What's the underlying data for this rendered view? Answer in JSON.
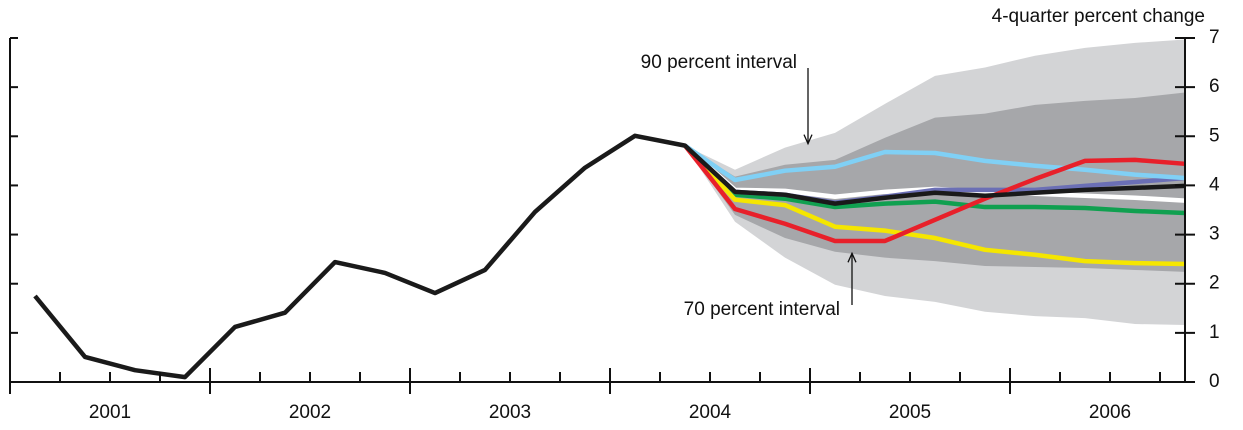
{
  "chart_data": {
    "type": "fan",
    "y_axis_label": "4-quarter percent change",
    "x": [
      2001.125,
      2001.375,
      2001.625,
      2001.875,
      2002.125,
      2002.375,
      2002.625,
      2002.875,
      2003.125,
      2003.375,
      2003.625,
      2003.875,
      2004.125,
      2004.375,
      2004.625,
      2004.875,
      2005.125,
      2005.375,
      2005.625,
      2005.875,
      2006.125,
      2006.375,
      2006.625,
      2006.875
    ],
    "xlim": [
      2001,
      2006.875
    ],
    "xticks": [
      {
        "value": 2001.5,
        "label": "2001"
      },
      {
        "value": 2002.5,
        "label": "2002"
      },
      {
        "value": 2003.5,
        "label": "2003"
      },
      {
        "value": 2004.5,
        "label": "2004"
      },
      {
        "value": 2005.5,
        "label": "2005"
      },
      {
        "value": 2006.5,
        "label": "2006"
      }
    ],
    "ylim": [
      0,
      7
    ],
    "yticks": [
      0,
      1,
      2,
      3,
      4,
      5,
      6,
      7
    ],
    "bands": [
      {
        "color": "#d3d4d6",
        "upper": [
          null,
          null,
          null,
          null,
          null,
          null,
          null,
          null,
          null,
          null,
          null,
          null,
          null,
          4.81,
          4.32,
          4.77,
          5.07,
          5.66,
          6.23,
          6.4,
          6.64,
          6.8,
          6.9,
          6.97
        ],
        "lower": [
          null,
          null,
          null,
          null,
          null,
          null,
          null,
          null,
          null,
          null,
          null,
          null,
          null,
          4.81,
          3.26,
          2.53,
          1.98,
          1.75,
          1.63,
          1.43,
          1.34,
          1.3,
          1.18,
          1.16
        ]
      },
      {
        "color": "#a6a7aa",
        "upper": [
          null,
          null,
          null,
          null,
          null,
          null,
          null,
          null,
          null,
          null,
          null,
          null,
          null,
          4.81,
          4.18,
          4.42,
          4.52,
          4.97,
          5.38,
          5.46,
          5.64,
          5.72,
          5.78,
          5.89
        ],
        "lower": [
          null,
          null,
          null,
          null,
          null,
          null,
          null,
          null,
          null,
          null,
          null,
          null,
          null,
          4.81,
          3.4,
          2.93,
          2.65,
          2.53,
          2.46,
          2.36,
          2.34,
          2.32,
          2.28,
          2.24
        ]
      }
    ],
    "series": [
      {
        "color": "#ffffff",
        "values": [
          null,
          null,
          null,
          null,
          null,
          null,
          null,
          null,
          null,
          null,
          null,
          null,
          null,
          4.81,
          3.91,
          3.89,
          3.77,
          3.87,
          3.93,
          3.87,
          3.83,
          3.79,
          3.75,
          3.69
        ]
      },
      {
        "color": "#10a050",
        "values": [
          null,
          null,
          null,
          null,
          null,
          null,
          null,
          null,
          null,
          null,
          null,
          null,
          null,
          4.81,
          3.81,
          3.73,
          3.56,
          3.63,
          3.67,
          3.56,
          3.56,
          3.54,
          3.48,
          3.44
        ]
      },
      {
        "color": "#f5e600",
        "values": [
          null,
          null,
          null,
          null,
          null,
          null,
          null,
          null,
          null,
          null,
          null,
          null,
          null,
          4.81,
          3.71,
          3.6,
          3.16,
          3.08,
          2.93,
          2.69,
          2.59,
          2.46,
          2.42,
          2.4
        ]
      },
      {
        "color": "#6b6fb5",
        "values": [
          null,
          null,
          null,
          null,
          null,
          null,
          null,
          null,
          null,
          null,
          null,
          null,
          null,
          4.81,
          3.87,
          3.81,
          3.65,
          3.77,
          3.91,
          3.91,
          3.91,
          3.99,
          4.07,
          4.15
        ]
      },
      {
        "color": "#80d0f5",
        "values": [
          null,
          null,
          null,
          null,
          null,
          null,
          null,
          null,
          null,
          null,
          null,
          null,
          null,
          4.81,
          4.11,
          4.3,
          4.38,
          4.68,
          4.66,
          4.5,
          4.4,
          4.32,
          4.22,
          4.15
        ]
      },
      {
        "color": "#e8202a",
        "values": [
          null,
          null,
          null,
          null,
          null,
          null,
          null,
          null,
          null,
          null,
          null,
          null,
          null,
          4.81,
          3.52,
          3.22,
          2.87,
          2.87,
          3.3,
          3.73,
          4.13,
          4.5,
          4.52,
          4.44
        ]
      },
      {
        "color": "#1a1a1a",
        "values": [
          1.75,
          0.51,
          0.24,
          0.1,
          1.12,
          1.41,
          2.44,
          2.22,
          1.81,
          2.28,
          3.46,
          4.36,
          5.01,
          4.81,
          3.87,
          3.81,
          3.63,
          3.75,
          3.85,
          3.79,
          3.85,
          3.91,
          3.95,
          3.99
        ]
      }
    ],
    "annotations": [
      {
        "text": "90 percent interval",
        "x": 2004.875,
        "y": 4.77
      },
      {
        "text": "70 percent interval",
        "x": 2005.125,
        "y": 2.7
      }
    ]
  }
}
